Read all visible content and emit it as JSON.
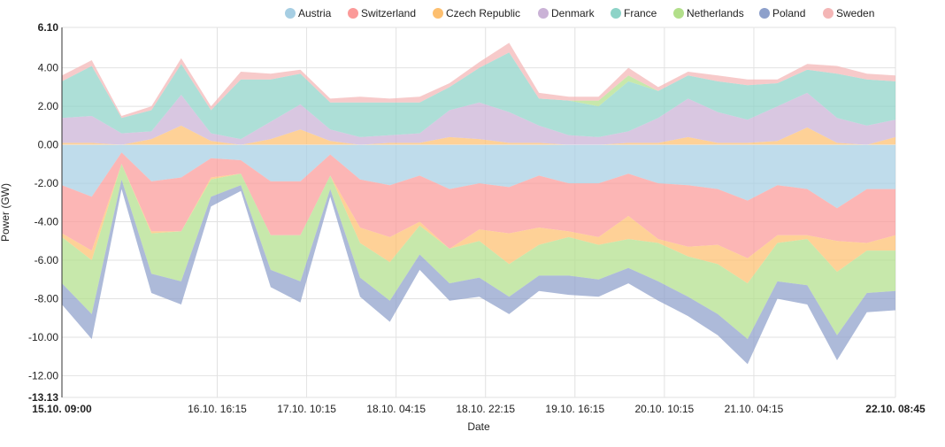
{
  "chart_data": {
    "type": "area",
    "stacked": true,
    "xlabel": "Date",
    "ylabel": "Power (GW)",
    "ylim": [
      -13.13,
      6.1
    ],
    "y_ticks": [
      "6.10",
      "4.00",
      "2.00",
      "0.00",
      "-2.00",
      "-4.00",
      "-6.00",
      "-8.00",
      "-10.00",
      "-12.00",
      "-13.13"
    ],
    "y_tick_values": [
      6.1,
      4.0,
      2.0,
      0.0,
      -2.0,
      -4.0,
      -6.0,
      -8.0,
      -10.0,
      -12.0,
      -13.13
    ],
    "x_ticks": [
      "15.10. 09:00",
      "16.10. 16:15",
      "17.10. 10:15",
      "18.10. 04:15",
      "18.10. 22:15",
      "19.10. 16:15",
      "20.10. 10:15",
      "21.10. 04:15",
      "22.10. 08:45"
    ],
    "x_tick_hours": [
      0,
      31.25,
      49.25,
      67.25,
      85.25,
      103.25,
      121.25,
      139.25,
      167.75
    ],
    "x_range_hours": [
      0,
      167.75
    ],
    "grid": true,
    "legend_position": "top",
    "series": [
      {
        "name": "Austria",
        "color": "#a6cee3"
      },
      {
        "name": "Switzerland",
        "color": "#fb9a99"
      },
      {
        "name": "Czech Republic",
        "color": "#fdbf6f"
      },
      {
        "name": "Denmark",
        "color": "#cab2d6"
      },
      {
        "name": "France",
        "color": "#8dd3c7"
      },
      {
        "name": "Netherlands",
        "color": "#b2df8a"
      },
      {
        "name": "Poland",
        "color": "#8da0cb"
      },
      {
        "name": "Sweden",
        "color": "#f4b6b6"
      }
    ],
    "x_hours": [
      0,
      6,
      12,
      18,
      24,
      30,
      36,
      42,
      48,
      54,
      60,
      66,
      72,
      78,
      84,
      90,
      96,
      102,
      108,
      114,
      120,
      126,
      132,
      138,
      144,
      150,
      156,
      162,
      167.75
    ],
    "values": {
      "positive": {
        "Austria": [
          0,
          0,
          0,
          0,
          0,
          0,
          0,
          0,
          0,
          0,
          0,
          0,
          0,
          0,
          0,
          0,
          0,
          0,
          0,
          0,
          0,
          0,
          0,
          0,
          0,
          0,
          0,
          0,
          0
        ],
        "Switzerland": [
          0,
          0,
          0,
          0,
          0,
          0,
          0,
          0,
          0,
          0,
          0,
          0,
          0,
          0,
          0,
          0,
          0,
          0,
          0,
          0,
          0,
          0,
          0,
          0,
          0,
          0,
          0,
          0,
          0
        ],
        "Czech Republic": [
          0.1,
          0.1,
          0,
          0.3,
          1,
          0.2,
          0,
          0.3,
          0.8,
          0.2,
          0,
          0.1,
          0.1,
          0.4,
          0.3,
          0.1,
          0.1,
          0,
          0,
          0.1,
          0.1,
          0.4,
          0.1,
          0.1,
          0.2,
          0.9,
          0.1,
          0,
          0.4
        ],
        "Denmark": [
          1.3,
          1.4,
          0.6,
          0.4,
          1.6,
          0.4,
          0.3,
          0.9,
          1.3,
          0.6,
          0.4,
          0.4,
          0.5,
          1.4,
          1.9,
          1.6,
          0.9,
          0.5,
          0.4,
          0.6,
          1.3,
          2.0,
          1.6,
          1.2,
          1.8,
          1.8,
          1.3,
          1.0,
          0.9
        ],
        "France": [
          1.9,
          2.6,
          0.8,
          1.1,
          1.6,
          1.2,
          3.1,
          2.2,
          1.6,
          1.4,
          1.8,
          1.7,
          1.6,
          1.2,
          1.8,
          3.1,
          1.4,
          1.8,
          1.6,
          2.6,
          1.4,
          1.2,
          1.6,
          1.8,
          1.2,
          1.2,
          2.3,
          2.4,
          2.0
        ],
        "Netherlands": [
          0,
          0,
          0,
          0,
          0,
          0,
          0,
          0,
          0,
          0,
          0,
          0,
          0,
          0,
          0,
          0,
          0,
          0,
          0.3,
          0.3,
          0,
          0,
          0,
          0,
          0,
          0,
          0,
          0,
          0
        ],
        "Poland": [
          0,
          0,
          0,
          0,
          0,
          0,
          0,
          0,
          0,
          0,
          0,
          0,
          0,
          0,
          0,
          0,
          0,
          0,
          0,
          0,
          0,
          0,
          0,
          0,
          0,
          0,
          0,
          0,
          0
        ],
        "Sweden": [
          0.3,
          0.3,
          0.1,
          0.2,
          0.3,
          0.2,
          0.4,
          0.3,
          0.2,
          0.2,
          0.3,
          0.2,
          0.3,
          0.2,
          0.3,
          0.5,
          0.3,
          0.2,
          0.2,
          0.4,
          0.2,
          0.2,
          0.3,
          0.3,
          0.2,
          0.3,
          0.4,
          0.3,
          0.3
        ]
      },
      "negative": {
        "Austria": [
          -2.1,
          -2.7,
          -0.4,
          -1.9,
          -1.7,
          -0.7,
          -0.8,
          -1.9,
          -1.9,
          -0.5,
          -1.8,
          -2.1,
          -1.6,
          -2.3,
          -2.0,
          -2.2,
          -1.6,
          -2.0,
          -2.0,
          -1.5,
          -2.0,
          -2.1,
          -2.3,
          -2.9,
          -2.1,
          -2.3,
          -3.3,
          -2.3,
          -2.3
        ],
        "Switzerland": [
          -2.5,
          -2.8,
          -0.6,
          -2.6,
          -2.8,
          -1.0,
          -0.7,
          -2.8,
          -2.8,
          -1.1,
          -2.5,
          -2.7,
          -2.4,
          -3.1,
          -2.4,
          -2.4,
          -2.7,
          -2.5,
          -2.8,
          -2.2,
          -2.9,
          -3.2,
          -2.9,
          -3.0,
          -2.6,
          -2.4,
          -1.7,
          -2.8,
          -2.4
        ],
        "Czech Republic": [
          -0.2,
          -0.5,
          0,
          -0.1,
          0,
          -0.1,
          0,
          0,
          0,
          0,
          -0.8,
          -1.3,
          -0.2,
          0,
          -0.6,
          -1.6,
          -0.9,
          -0.3,
          -0.4,
          -1.2,
          -0.2,
          -0.5,
          -1.0,
          -1.3,
          -0.4,
          -0.2,
          -1.6,
          -0.4,
          -0.8
        ],
        "Denmark": [
          0,
          0,
          0,
          0,
          0,
          0,
          0,
          0,
          0,
          0,
          0,
          0,
          0,
          0,
          0,
          0,
          0,
          0,
          0,
          0,
          0,
          0,
          0,
          0,
          0,
          0,
          0,
          0,
          0
        ],
        "France": [
          0,
          0,
          0,
          0,
          0,
          0,
          0,
          0,
          0,
          0,
          0,
          0,
          0,
          0,
          0,
          0,
          0,
          0,
          0,
          0,
          0,
          0,
          0,
          0,
          0,
          0,
          0,
          0,
          0
        ],
        "Netherlands": [
          -2.4,
          -2.8,
          -0.8,
          -2.1,
          -2.6,
          -0.9,
          -0.6,
          -1.8,
          -2.4,
          -0.7,
          -1.8,
          -2.0,
          -1.5,
          -1.8,
          -1.9,
          -1.7,
          -1.6,
          -2.0,
          -1.8,
          -1.5,
          -2.0,
          -2.1,
          -2.6,
          -2.9,
          -2.0,
          -2.4,
          -3.3,
          -2.2,
          -2.1
        ],
        "Poland": [
          -1.1,
          -1.3,
          -0.5,
          -1.0,
          -1.2,
          -0.5,
          -0.3,
          -0.9,
          -1.1,
          -0.4,
          -1.0,
          -1.1,
          -0.8,
          -0.9,
          -1.0,
          -0.9,
          -0.8,
          -1.0,
          -0.9,
          -0.8,
          -1.0,
          -1.0,
          -1.1,
          -1.3,
          -0.9,
          -1.0,
          -1.3,
          -1.0,
          -1.0
        ],
        "Sweden": [
          0,
          0,
          0,
          0,
          0,
          0,
          0,
          0,
          0,
          0,
          0,
          0,
          0,
          0,
          0,
          0,
          0,
          0,
          0,
          0,
          0,
          0,
          0,
          0,
          0,
          0,
          0,
          0,
          0
        ]
      }
    }
  }
}
